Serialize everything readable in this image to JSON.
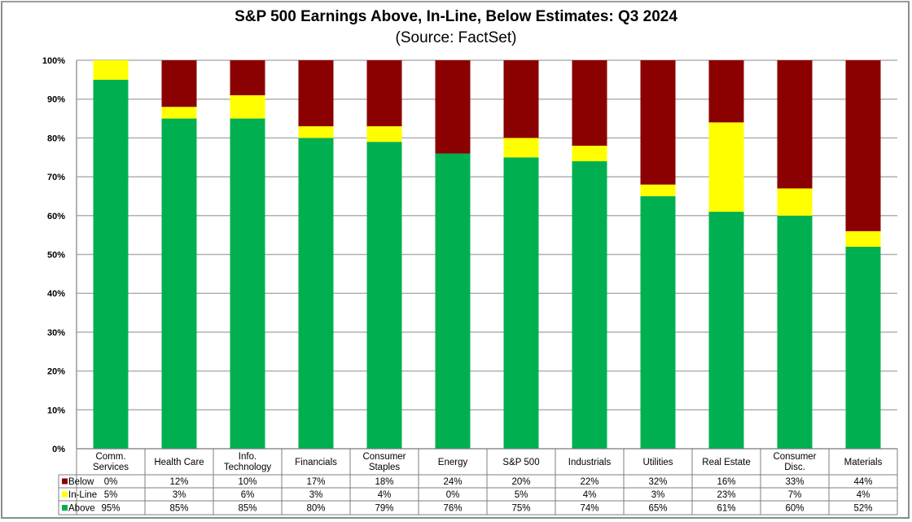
{
  "chart_data": {
    "type": "bar",
    "stacked": true,
    "title": "S&P 500 Earnings Above, In-Line, Below Estimates: Q3 2024",
    "subtitle": "(Source: FactSet)",
    "xlabel": "",
    "ylabel": "",
    "ylim": [
      0,
      100
    ],
    "yticks": [
      "0%",
      "10%",
      "20%",
      "30%",
      "40%",
      "50%",
      "60%",
      "70%",
      "80%",
      "90%",
      "100%"
    ],
    "grid": true,
    "legend": "data-table-left",
    "categories": [
      [
        "Comm.",
        "Services"
      ],
      [
        "Health Care"
      ],
      [
        "Info.",
        "Technology"
      ],
      [
        "Financials"
      ],
      [
        "Consumer",
        "Staples"
      ],
      [
        "Energy"
      ],
      [
        "S&P 500"
      ],
      [
        "Industrials"
      ],
      [
        "Utilities"
      ],
      [
        "Real Estate"
      ],
      [
        "Consumer",
        "Disc."
      ],
      [
        "Materials"
      ]
    ],
    "series": [
      {
        "name": "Below",
        "color": "#8b0000",
        "values": [
          0,
          12,
          10,
          17,
          18,
          24,
          20,
          22,
          32,
          16,
          33,
          44
        ],
        "labels": [
          "0%",
          "12%",
          "10%",
          "17%",
          "18%",
          "24%",
          "20%",
          "22%",
          "32%",
          "16%",
          "33%",
          "44%"
        ]
      },
      {
        "name": "In-Line",
        "color": "#ffff00",
        "values": [
          5,
          3,
          6,
          3,
          4,
          0,
          5,
          4,
          3,
          23,
          7,
          4
        ],
        "labels": [
          "5%",
          "3%",
          "6%",
          "3%",
          "4%",
          "0%",
          "5%",
          "4%",
          "3%",
          "23%",
          "7%",
          "4%"
        ]
      },
      {
        "name": "Above",
        "color": "#00b050",
        "values": [
          95,
          85,
          85,
          80,
          79,
          76,
          75,
          74,
          65,
          61,
          60,
          52
        ],
        "labels": [
          "95%",
          "85%",
          "85%",
          "80%",
          "79%",
          "76%",
          "75%",
          "74%",
          "65%",
          "61%",
          "60%",
          "52%"
        ]
      }
    ]
  }
}
